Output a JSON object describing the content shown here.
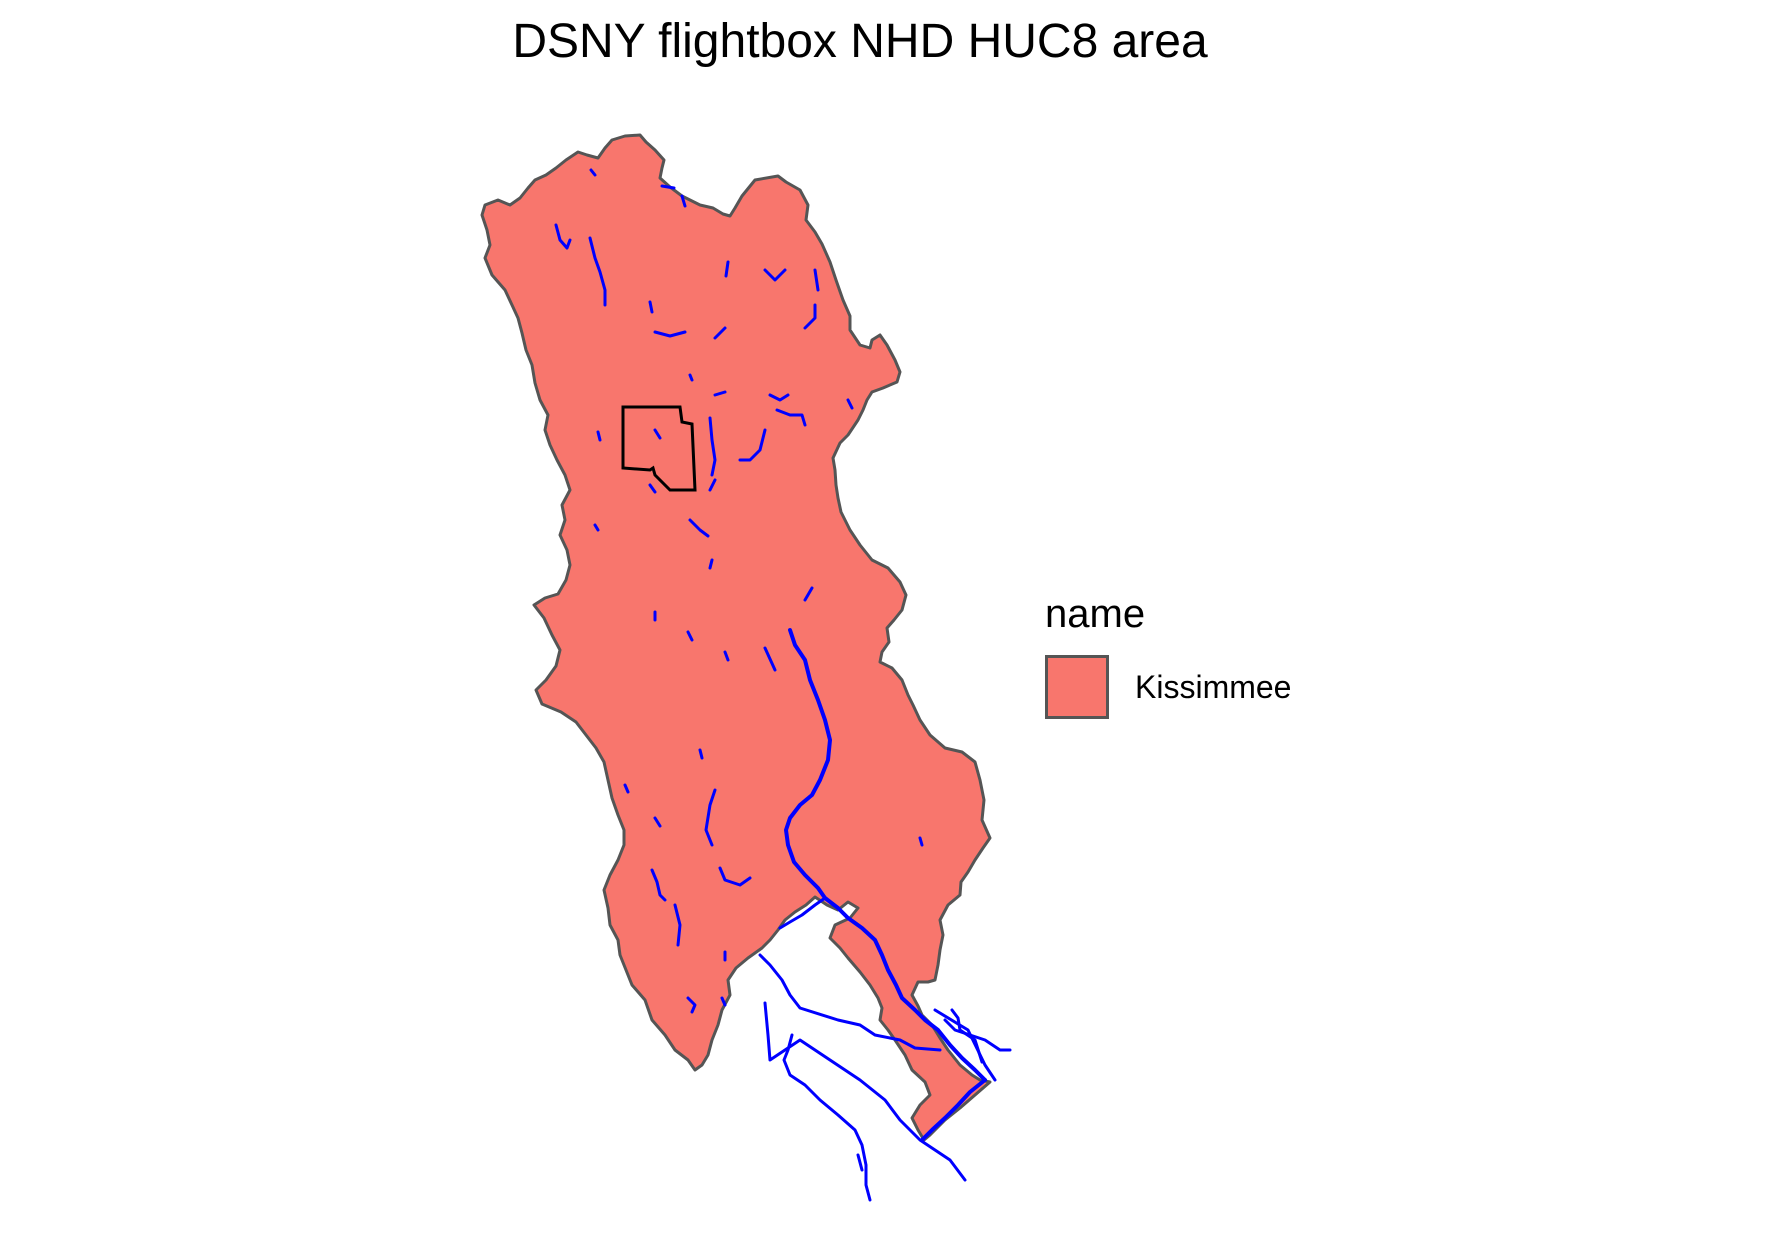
{
  "title": "DSNY flightbox NHD HUC8 area",
  "legend": {
    "title": "name",
    "items": [
      {
        "label": "Kissimmee",
        "fill": "#F8766D",
        "stroke": "#555555"
      }
    ]
  },
  "colors": {
    "huc8_fill": "#F8766D",
    "huc8_stroke": "#555555",
    "flowlines": "#0000FF",
    "flightbox": "#000000",
    "background": "#FFFFFF"
  }
}
